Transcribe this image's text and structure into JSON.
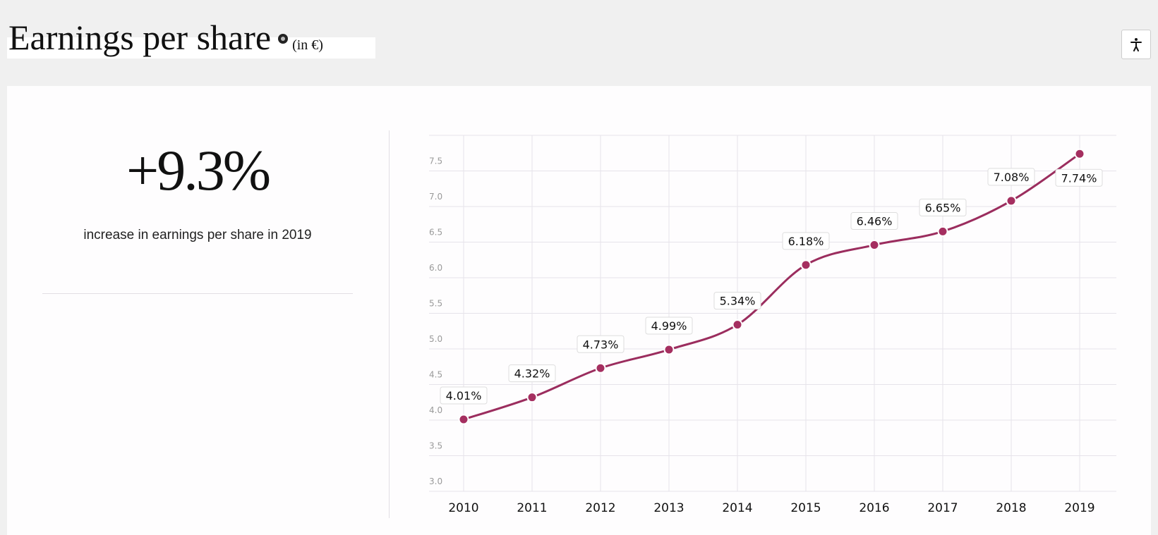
{
  "header": {
    "title": "Earnings per share",
    "unit": "(in €)",
    "info_icon": "info-dot-icon"
  },
  "toolbar": {
    "accessibility_icon": "accessibility-icon"
  },
  "kpi": {
    "value": "+9.3%",
    "label": "increase in earnings per share in 2019"
  },
  "colors": {
    "line": "#9b2d5e",
    "point": "#a52f60",
    "grid": "#e6e3ea"
  },
  "chart_data": {
    "type": "line",
    "title": "Earnings per share (in €)",
    "xlabel": "",
    "ylabel": "",
    "categories": [
      "2010",
      "2011",
      "2012",
      "2013",
      "2014",
      "2015",
      "2016",
      "2017",
      "2018",
      "2019"
    ],
    "values": [
      4.01,
      4.32,
      4.73,
      4.99,
      5.34,
      6.18,
      6.46,
      6.65,
      7.08,
      7.74
    ],
    "data_labels": [
      "4.01%",
      "4.32%",
      "4.73%",
      "4.99%",
      "5.34%",
      "6.18%",
      "6.46%",
      "6.65%",
      "7.08%",
      "7.74%"
    ],
    "ylim": [
      3.0,
      8.0
    ],
    "yticks": [
      "3.0",
      "3.5",
      "4.0",
      "4.5",
      "5.0",
      "5.5",
      "6.0",
      "6.5",
      "7.0",
      "7.5"
    ],
    "grid": true,
    "legend": "none"
  }
}
